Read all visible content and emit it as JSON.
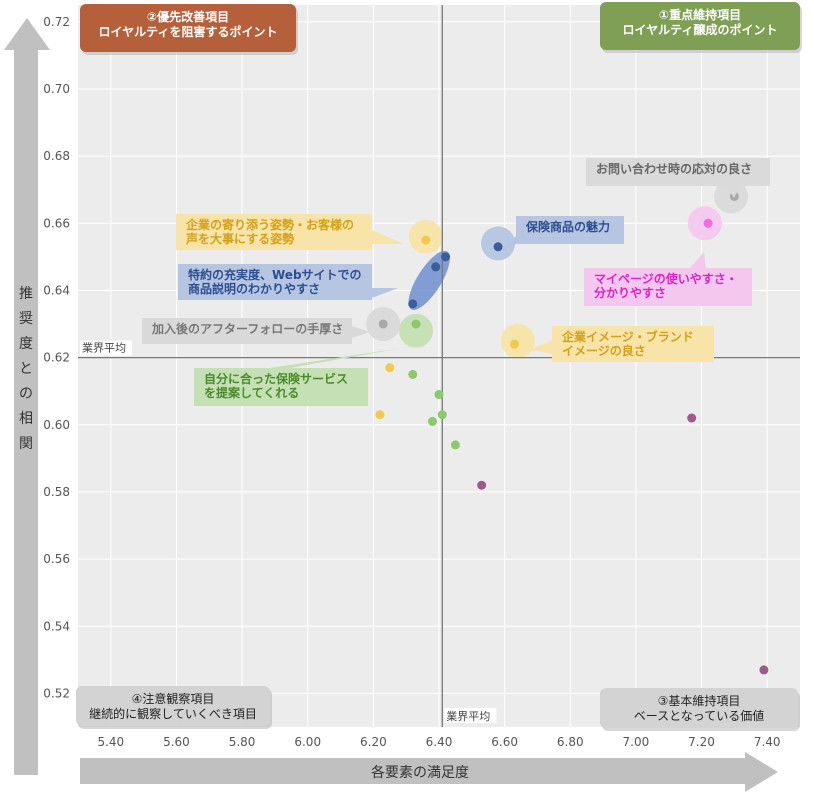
{
  "chart_data": {
    "type": "scatter",
    "xlabel": "各要素の満足度",
    "ylabel": "推奨度との相関",
    "xlim": [
      5.3,
      7.5
    ],
    "ylim": [
      0.51,
      0.725
    ],
    "x_ticks": [
      "5.40",
      "5.60",
      "5.80",
      "6.00",
      "6.20",
      "6.40",
      "6.60",
      "6.80",
      "7.00",
      "7.20",
      "7.40"
    ],
    "y_ticks": [
      "0.52",
      "0.54",
      "0.56",
      "0.58",
      "0.60",
      "0.62",
      "0.64",
      "0.66",
      "0.68",
      "0.70",
      "0.72"
    ],
    "grid": true,
    "reference_lines": {
      "x_value": 6.41,
      "y_value": 0.62,
      "x_label": "業界平均",
      "y_label": "業界平均"
    },
    "quadrants": [
      {
        "lines": [
          "①重点維持項目",
          "ロイヤルティ醸成のポイント"
        ],
        "color": "#7f9f54"
      },
      {
        "lines": [
          "②優先改善項目",
          "ロイヤルティを阻害するポイント"
        ],
        "color": "#b5603a"
      },
      {
        "lines": [
          "③基本維持項目",
          "ベースとなっている価値"
        ],
        "color": "#d3d3d3"
      },
      {
        "lines": [
          "④注意観察項目",
          "継続的に観察していくべき項目"
        ],
        "color": "#d3d3d3"
      }
    ],
    "points": [
      {
        "x": 6.42,
        "y": 0.65,
        "color": "#3a5d9c"
      },
      {
        "x": 6.39,
        "y": 0.647,
        "color": "#3a5d9c"
      },
      {
        "x": 6.32,
        "y": 0.636,
        "color": "#3a5d9c"
      },
      {
        "x": 6.58,
        "y": 0.653,
        "color": "#3a5d9c"
      },
      {
        "x": 6.36,
        "y": 0.655,
        "color": "#f2c94c"
      },
      {
        "x": 6.63,
        "y": 0.624,
        "color": "#f2c94c"
      },
      {
        "x": 6.25,
        "y": 0.617,
        "color": "#f2c94c"
      },
      {
        "x": 6.22,
        "y": 0.603,
        "color": "#f2c94c"
      },
      {
        "x": 6.23,
        "y": 0.63,
        "color": "#a9a9a9"
      },
      {
        "x": 7.3,
        "y": 0.668,
        "color": "#a9a9a9"
      },
      {
        "x": 6.33,
        "y": 0.63,
        "color": "#8bc96a"
      },
      {
        "x": 6.32,
        "y": 0.615,
        "color": "#8bc96a"
      },
      {
        "x": 6.4,
        "y": 0.609,
        "color": "#8bc96a"
      },
      {
        "x": 6.41,
        "y": 0.603,
        "color": "#8bc96a"
      },
      {
        "x": 6.38,
        "y": 0.601,
        "color": "#8bc96a"
      },
      {
        "x": 6.45,
        "y": 0.594,
        "color": "#8bc96a"
      },
      {
        "x": 7.22,
        "y": 0.66,
        "color": "#f06ce0"
      },
      {
        "x": 6.53,
        "y": 0.582,
        "color": "#9e5a8a"
      },
      {
        "x": 7.17,
        "y": 0.602,
        "color": "#9e5a8a"
      },
      {
        "x": 7.39,
        "y": 0.527,
        "color": "#9e5a8a"
      }
    ],
    "annotations": [
      {
        "lines": [
          "企業の寄り添う姿勢・お客様の",
          "声を大事にする姿勢"
        ],
        "color": "#d4a017",
        "bg": "#f8e4a8"
      },
      {
        "lines": [
          "保険商品の魅力"
        ],
        "color": "#2e4f8f",
        "bg": "#b5c5e2"
      },
      {
        "lines": [
          "特約の充実度、Webサイトでの",
          "商品説明のわかりやすさ"
        ],
        "color": "#2e4f8f",
        "bg": "#b5c5e2"
      },
      {
        "lines": [
          "加入後のアフターフォローの手厚さ"
        ],
        "color": "#777777",
        "bg": "#d9d9d9"
      },
      {
        "lines": [
          "お問い合わせ時の応対の良さ"
        ],
        "color": "#666666",
        "bg": "#dadada"
      },
      {
        "lines": [
          "マイページの使いやすさ・",
          "分かりやすさ"
        ],
        "color": "#e020c8",
        "bg": "#f4c8ee"
      },
      {
        "lines": [
          "企業イメージ・ブランド",
          "イメージの良さ"
        ],
        "color": "#d4a017",
        "bg": "#f8e4a8"
      },
      {
        "lines": [
          "自分に合った保険サービス",
          "を提案してくれる"
        ],
        "color": "#4a8a2a",
        "bg": "#c5e0b4"
      }
    ],
    "highlights": [
      {
        "cx": 6.36,
        "cy": 0.656,
        "color": "#f8e4a8"
      },
      {
        "cx": 6.58,
        "cy": 0.654,
        "color": "#b5c5e2"
      },
      {
        "cx": 6.23,
        "cy": 0.63,
        "color": "#d9d9d9"
      },
      {
        "cx": 6.33,
        "cy": 0.628,
        "color": "#c5e0b4"
      },
      {
        "cx": 6.64,
        "cy": 0.625,
        "color": "#f8e4a8"
      },
      {
        "cx": 7.29,
        "cy": 0.668,
        "color": "#dadada"
      },
      {
        "cx": 7.21,
        "cy": 0.66,
        "color": "#f4c8ee"
      }
    ]
  }
}
